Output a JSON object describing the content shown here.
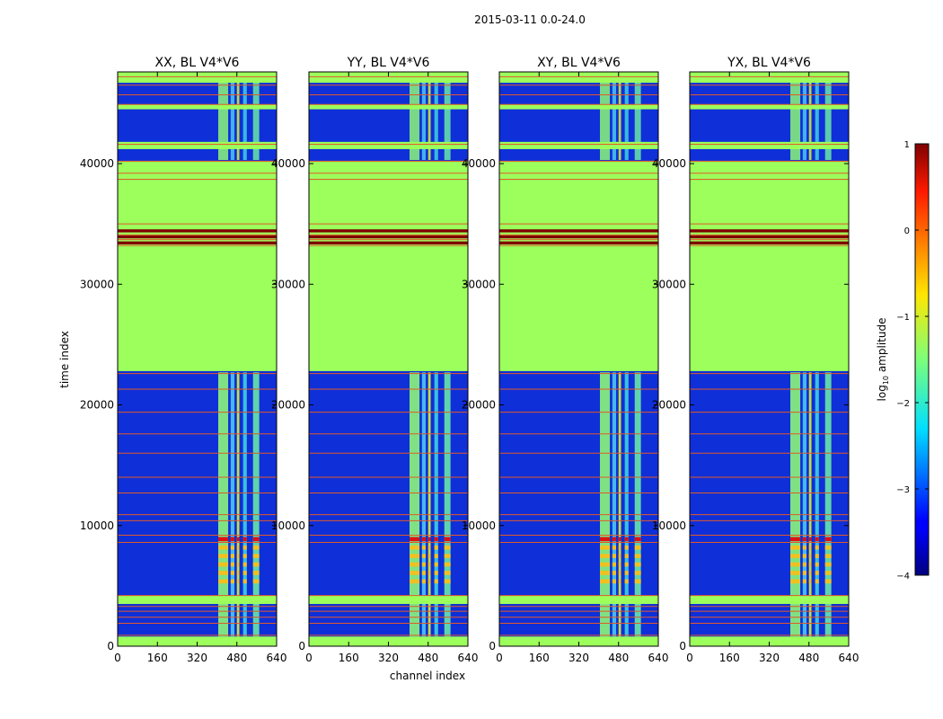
{
  "suptitle": "2015-03-11 0.0-24.0",
  "chart_data": {
    "type": "heatmap",
    "xlabel": "channel index",
    "ylabel": "time index",
    "xlim": [
      0,
      640
    ],
    "ylim": [
      0,
      47600
    ],
    "xticks": [
      0,
      160,
      320,
      480,
      640
    ],
    "yticks": [
      0,
      10000,
      20000,
      30000,
      40000
    ],
    "ytick_labels": [
      "0",
      "10000",
      "20000",
      "30000",
      "40000"
    ],
    "colorbar": {
      "label": "log10 amplitude",
      "label_main": "log",
      "label_sub": "10",
      "label_rest": " amplitude",
      "range": [
        -4,
        1
      ],
      "ticks": [
        1,
        0,
        -1,
        -2,
        -3,
        -4
      ],
      "tick_labels": [
        "1",
        "0",
        "−1",
        "−2",
        "−3",
        "−4"
      ],
      "colormap": "jet"
    },
    "flagged_bands": [
      [
        0,
        800
      ],
      [
        3500,
        4200
      ],
      [
        22800,
        40200
      ],
      [
        41200,
        41800
      ],
      [
        44500,
        44900
      ],
      [
        46700,
        47600
      ]
    ],
    "bright_channels": [
      [
        405,
        445
      ],
      [
        455,
        470
      ],
      [
        480,
        490
      ],
      [
        505,
        520
      ],
      [
        545,
        570
      ]
    ],
    "panels": [
      {
        "title": "XX, BL V4*V6",
        "show_ylabels": true
      },
      {
        "title": "YY, BL V4*V6",
        "show_ylabels": true
      },
      {
        "title": "XY, BL V4*V6",
        "show_ylabels": true
      },
      {
        "title": "YX, BL V4*V6",
        "show_ylabels": true
      }
    ]
  }
}
